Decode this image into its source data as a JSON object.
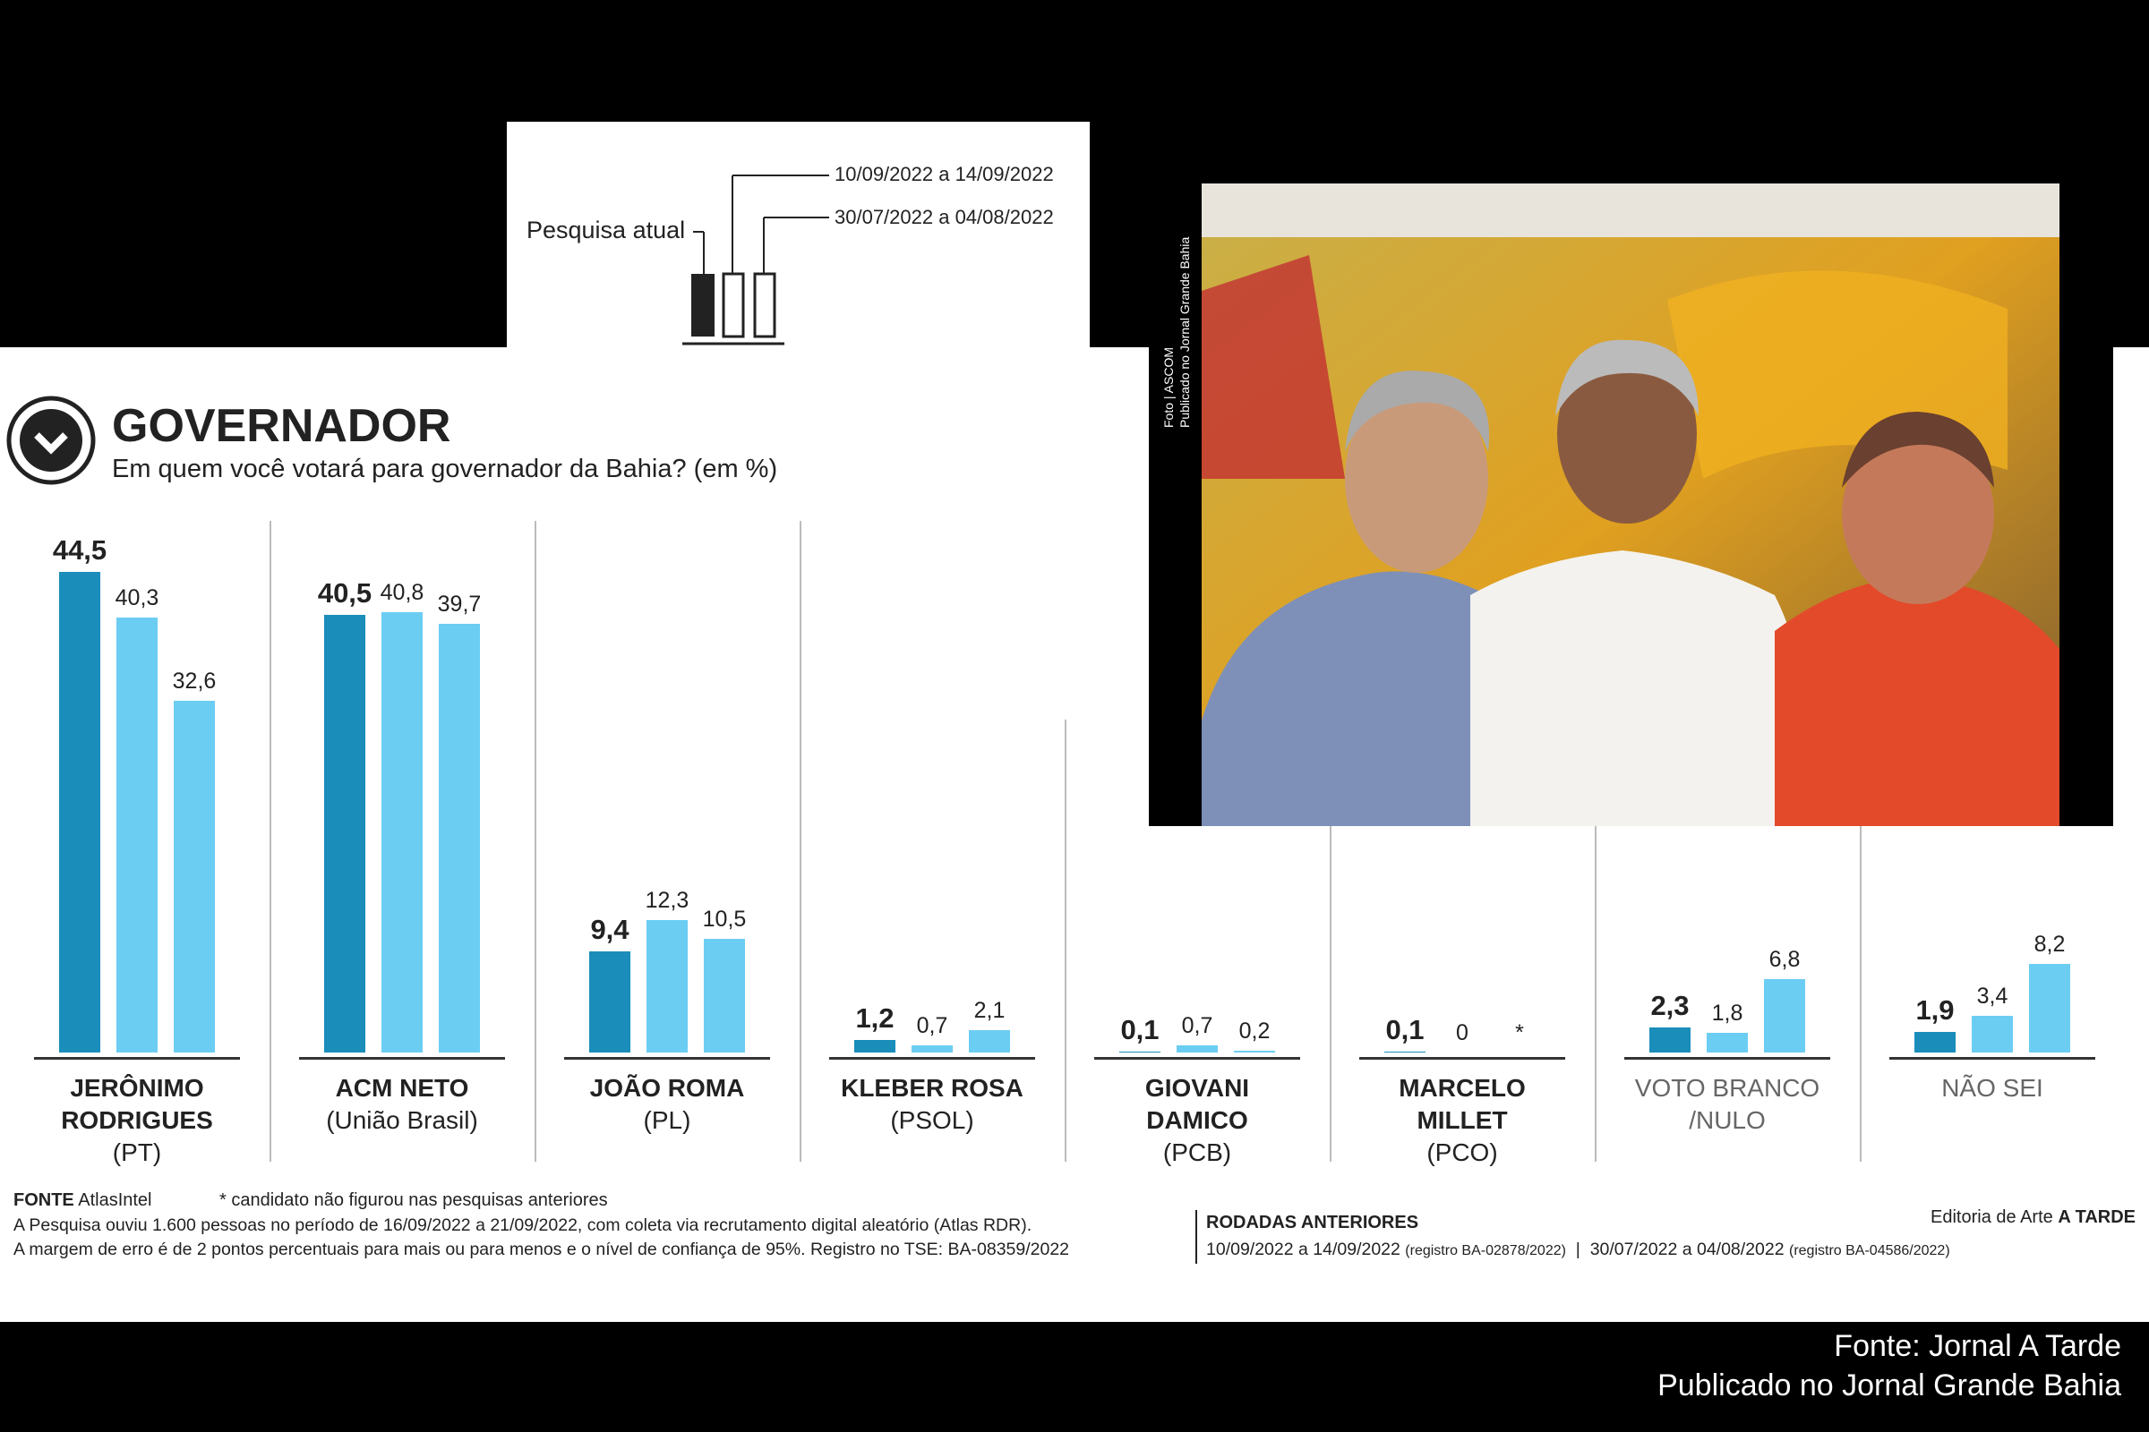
{
  "legend": {
    "label": "Pesquisa atual"
  },
  "chart_data": {
    "type": "bar",
    "title": "GOVERNADOR",
    "subtitle": "Em quem você votará para governador da Bahia? (em %)",
    "categories": [
      "JERÔNIMO RODRIGUES",
      "ACM NETO",
      "JOÃO ROMA",
      "KLEBER ROSA",
      "GIOVANI DAMICO",
      "MARCELO MILLET",
      "VOTO BRANCO /NULO",
      "NÃO SEI"
    ],
    "parties": [
      "(PT)",
      "(União Brasil)",
      "(PL)",
      "(PSOL)",
      "(PCB)",
      "(PCO)",
      null,
      null
    ],
    "series": [
      {
        "name": "16/09/2022 a 21/09/2022",
        "color": "#1a8dbb",
        "values": [
          44.5,
          40.5,
          9.4,
          1.2,
          0.1,
          0.1,
          2.3,
          1.9
        ],
        "value_labels": [
          "44,5",
          "40,5",
          "9,4",
          "1,2",
          "0,1",
          "0,1",
          "2,3",
          "1,9"
        ]
      },
      {
        "name": "10/09/2022 a 14/09/2022",
        "color": "#6ccdf3",
        "values": [
          40.3,
          40.8,
          12.3,
          0.7,
          0.7,
          0,
          1.8,
          3.4
        ],
        "value_labels": [
          "40,3",
          "40,8",
          "12,3",
          "0,7",
          "0,7",
          "0",
          "1,8",
          "3,4"
        ]
      },
      {
        "name": "30/07/2022 a 04/08/2022",
        "color": "#6ccdf3",
        "values": [
          32.6,
          39.7,
          10.5,
          2.1,
          0.2,
          null,
          6.8,
          8.2
        ],
        "value_labels": [
          "32,6",
          "39,7",
          "10,5",
          "2,1",
          "0,2",
          "*",
          "6,8",
          "8,2"
        ]
      }
    ]
  },
  "photo": {
    "credit": "Foto | ASCOM",
    "published": "Publicado no Jornal Grande Bahia"
  },
  "footer": {
    "source_label": "FONTE",
    "source": "AtlasIntel",
    "note": "* candidato não figurou nas pesquisas anteriores",
    "method": "A Pesquisa ouviu 1.600 pessoas no período de 16/09/2022 a 21/09/2022, com coleta via recrutamento digital aleatório (Atlas RDR).",
    "margin": "A margem de erro é de 2 pontos percentuais para mais ou para menos e o nível de confiança de 95%. Registro no TSE: BA-08359/2022",
    "previous_title": "RODADAS ANTERIORES",
    "previous": [
      "10/09/2022 a 14/09/2022",
      "(registro BA-02878/2022)",
      "30/07/2022 a 04/08/2022",
      "(registro BA-04586/2022)"
    ],
    "credit_label": "Editoria de Arte",
    "credit": "A TARDE"
  },
  "bottom": {
    "source": "Fonte: Jornal A Tarde",
    "published": "Publicado no Jornal Grande Bahia"
  }
}
